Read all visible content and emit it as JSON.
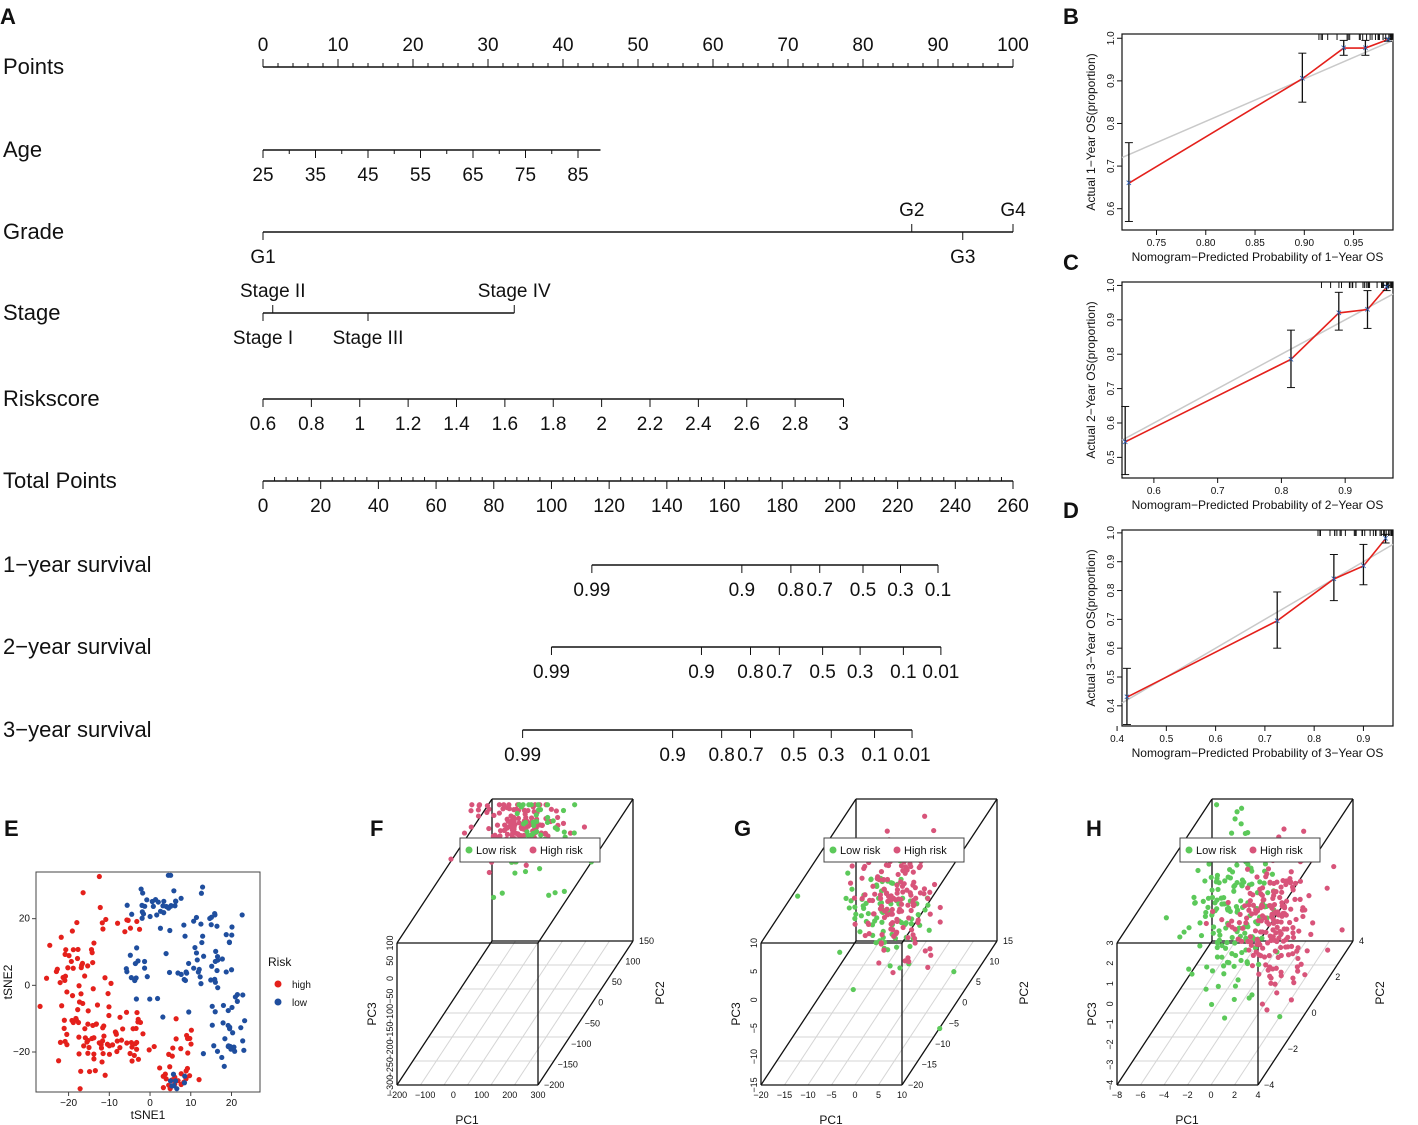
{
  "panel_letters": [
    "A",
    "B",
    "C",
    "D",
    "E",
    "F",
    "G",
    "H"
  ],
  "chart_data": [
    {
      "panel": "A",
      "type": "nomogram",
      "rows": [
        {
          "label": "Points",
          "ticks": [
            {
              "v": 0,
              "t": "0"
            },
            {
              "v": 10,
              "t": "10"
            },
            {
              "v": 20,
              "t": "20"
            },
            {
              "v": 30,
              "t": "30"
            },
            {
              "v": 40,
              "t": "40"
            },
            {
              "v": 50,
              "t": "50"
            },
            {
              "v": 60,
              "t": "60"
            },
            {
              "v": 70,
              "t": "70"
            },
            {
              "v": 80,
              "t": "80"
            },
            {
              "v": 90,
              "t": "90"
            },
            {
              "v": 100,
              "t": "100"
            }
          ],
          "range": [
            0,
            100
          ],
          "labels_above": true
        },
        {
          "label": "Age",
          "ticks": [
            {
              "v": 0,
              "t": "25"
            },
            {
              "v": 7,
              "t": "35"
            },
            {
              "v": 14,
              "t": "45"
            },
            {
              "v": 21,
              "t": "55"
            },
            {
              "v": 28,
              "t": "65"
            },
            {
              "v": 35,
              "t": "75"
            },
            {
              "v": 42,
              "t": "85"
            }
          ],
          "range": [
            0,
            45
          ],
          "labels_above": false
        },
        {
          "label": "Grade",
          "ticks": [
            {
              "v": 0,
              "t": "G1",
              "pos": "below"
            },
            {
              "v": 86.5,
              "t": "G2",
              "pos": "above"
            },
            {
              "v": 93.3,
              "t": "G3",
              "pos": "below"
            },
            {
              "v": 100,
              "t": "G4",
              "pos": "above"
            }
          ],
          "range": [
            0,
            100
          ]
        },
        {
          "label": "Stage",
          "ticks": [
            {
              "v": 0,
              "t": "Stage I",
              "pos": "below"
            },
            {
              "v": 1.3,
              "t": "Stage II",
              "pos": "above"
            },
            {
              "v": 14,
              "t": "Stage III",
              "pos": "below"
            },
            {
              "v": 33.5,
              "t": "Stage IV",
              "pos": "above"
            }
          ],
          "range": [
            0,
            33.5
          ]
        },
        {
          "label": "Riskscore",
          "ticks": [
            {
              "v": 0,
              "t": "0.6"
            },
            {
              "v": 6.45,
              "t": "0.8"
            },
            {
              "v": 12.9,
              "t": "1"
            },
            {
              "v": 19.35,
              "t": "1.2"
            },
            {
              "v": 25.8,
              "t": "1.4"
            },
            {
              "v": 32.25,
              "t": "1.6"
            },
            {
              "v": 38.7,
              "t": "1.8"
            },
            {
              "v": 45.15,
              "t": "2"
            },
            {
              "v": 51.6,
              "t": "2.2"
            },
            {
              "v": 58.05,
              "t": "2.4"
            },
            {
              "v": 64.5,
              "t": "2.6"
            },
            {
              "v": 70.95,
              "t": "2.8"
            },
            {
              "v": 77.4,
              "t": "3"
            }
          ],
          "range": [
            0,
            77.4
          ],
          "labels_above": false
        },
        {
          "label": "Total Points",
          "ticks": [
            {
              "v": 0,
              "t": "0"
            },
            {
              "v": 20,
              "t": "20"
            },
            {
              "v": 40,
              "t": "40"
            },
            {
              "v": 60,
              "t": "60"
            },
            {
              "v": 80,
              "t": "80"
            },
            {
              "v": 100,
              "t": "100"
            },
            {
              "v": 120,
              "t": "120"
            },
            {
              "v": 140,
              "t": "140"
            },
            {
              "v": 160,
              "t": "160"
            },
            {
              "v": 180,
              "t": "180"
            },
            {
              "v": 200,
              "t": "200"
            },
            {
              "v": 220,
              "t": "220"
            },
            {
              "v": 240,
              "t": "240"
            },
            {
              "v": 260,
              "t": "260"
            }
          ],
          "range": [
            0,
            260
          ],
          "scale": "total",
          "labels_above": false
        },
        {
          "label": "1−year survival",
          "ticks": [
            {
              "v": 114,
              "t": "0.99"
            },
            {
              "v": 166,
              "t": "0.9"
            },
            {
              "v": 183,
              "t": "0.8"
            },
            {
              "v": 193,
              "t": "0.7"
            },
            {
              "v": 208,
              "t": "0.5"
            },
            {
              "v": 221,
              "t": "0.3"
            },
            {
              "v": 234,
              "t": "0.1"
            }
          ],
          "range": [
            114,
            234
          ],
          "scale": "total",
          "labels_above": false
        },
        {
          "label": "2−year survival",
          "ticks": [
            {
              "v": 100,
              "t": "0.99"
            },
            {
              "v": 152,
              "t": "0.9"
            },
            {
              "v": 169,
              "t": "0.8"
            },
            {
              "v": 179,
              "t": "0.7"
            },
            {
              "v": 194,
              "t": "0.5"
            },
            {
              "v": 207,
              "t": "0.3"
            },
            {
              "v": 222,
              "t": "0.1"
            },
            {
              "v": 235,
              "t": "0.01"
            }
          ],
          "range": [
            100,
            235
          ],
          "scale": "total",
          "labels_above": false
        },
        {
          "label": "3−year survival",
          "ticks": [
            {
              "v": 90,
              "t": "0.99"
            },
            {
              "v": 142,
              "t": "0.9"
            },
            {
              "v": 159,
              "t": "0.8"
            },
            {
              "v": 169,
              "t": "0.7"
            },
            {
              "v": 184,
              "t": "0.5"
            },
            {
              "v": 197,
              "t": "0.3"
            },
            {
              "v": 212,
              "t": "0.1"
            },
            {
              "v": 225,
              "t": "0.01"
            }
          ],
          "range": [
            90,
            225
          ],
          "scale": "total",
          "labels_above": false
        }
      ]
    },
    {
      "panel": "B",
      "type": "line",
      "subtype": "calibration",
      "xlabel": "Nomogram−Predicted Probability of 1−Year OS",
      "ylabel": "Actual 1−Year OS(proportion)",
      "xlim": [
        0.715,
        0.99
      ],
      "ylim": [
        0.55,
        1.01
      ],
      "xticks": [
        0.75,
        0.8,
        0.85,
        0.9,
        0.95
      ],
      "xtick_labels": [
        "0.75",
        "0.80",
        "0.85",
        "0.90",
        "0.95"
      ],
      "yticks": [
        0.6,
        0.7,
        0.8,
        0.9,
        1.0
      ],
      "ytick_labels": [
        "0.6",
        "0.7",
        "0.8",
        "0.9",
        "1.0"
      ],
      "reference_line": [
        [
          0.715,
          0.72
        ],
        [
          0.99,
          0.995
        ]
      ],
      "series": [
        {
          "name": "calibration",
          "color": "#e4201b",
          "points": [
            {
              "x": 0.722,
              "y": 0.66,
              "lo": 0.57,
              "hi": 0.755
            },
            {
              "x": 0.898,
              "y": 0.905,
              "lo": 0.85,
              "hi": 0.965
            },
            {
              "x": 0.94,
              "y": 0.977,
              "lo": 0.96,
              "hi": 0.995
            },
            {
              "x": 0.962,
              "y": 0.977,
              "lo": 0.96,
              "hi": 0.995
            },
            {
              "x": 0.985,
              "y": 0.997,
              "lo": 0.993,
              "hi": 1.0
            }
          ]
        }
      ]
    },
    {
      "panel": "C",
      "type": "line",
      "subtype": "calibration",
      "xlabel": "Nomogram−Predicted Probability of 2−Year OS",
      "ylabel": "Actual 2−Year OS(proportion)",
      "xlim": [
        0.55,
        0.975
      ],
      "ylim": [
        0.44,
        1.01
      ],
      "xticks": [
        0.6,
        0.7,
        0.8,
        0.9
      ],
      "xtick_labels": [
        "0.6",
        "0.7",
        "0.8",
        "0.9"
      ],
      "yticks": [
        0.5,
        0.6,
        0.7,
        0.8,
        0.9,
        1.0
      ],
      "ytick_labels": [
        "0.5",
        "0.6",
        "0.7",
        "0.8",
        "0.9",
        "1.0"
      ],
      "reference_line": [
        [
          0.55,
          0.55
        ],
        [
          0.975,
          0.975
        ]
      ],
      "series": [
        {
          "name": "calibration",
          "color": "#e4201b",
          "points": [
            {
              "x": 0.555,
              "y": 0.545,
              "lo": 0.45,
              "hi": 0.648
            },
            {
              "x": 0.815,
              "y": 0.785,
              "lo": 0.703,
              "hi": 0.87
            },
            {
              "x": 0.89,
              "y": 0.92,
              "lo": 0.87,
              "hi": 0.98
            },
            {
              "x": 0.935,
              "y": 0.93,
              "lo": 0.875,
              "hi": 0.985
            },
            {
              "x": 0.965,
              "y": 0.995,
              "lo": 0.985,
              "hi": 1.0
            }
          ]
        }
      ]
    },
    {
      "panel": "D",
      "type": "line",
      "subtype": "calibration",
      "xlabel": "Nomogram−Predicted Probability of 3−Year OS",
      "ylabel": "Actual 3−Year OS(proportion)",
      "xlim": [
        0.41,
        0.96
      ],
      "ylim": [
        0.33,
        1.01
      ],
      "xticks": [
        0.4,
        0.5,
        0.6,
        0.7,
        0.8,
        0.9
      ],
      "xtick_labels": [
        "0.4",
        "0.5",
        "0.6",
        "0.7",
        "0.8",
        "0.9"
      ],
      "yticks": [
        0.4,
        0.5,
        0.6,
        0.7,
        0.8,
        0.9,
        1.0
      ],
      "ytick_labels": [
        "0.4",
        "0.5",
        "0.6",
        "0.7",
        "0.8",
        "0.9",
        "1.0"
      ],
      "reference_line": [
        [
          0.41,
          0.41
        ],
        [
          0.96,
          0.96
        ]
      ],
      "series": [
        {
          "name": "calibration",
          "color": "#e4201b",
          "points": [
            {
              "x": 0.42,
              "y": 0.43,
              "lo": 0.335,
              "hi": 0.53
            },
            {
              "x": 0.725,
              "y": 0.695,
              "lo": 0.6,
              "hi": 0.795
            },
            {
              "x": 0.84,
              "y": 0.84,
              "lo": 0.765,
              "hi": 0.925
            },
            {
              "x": 0.9,
              "y": 0.885,
              "lo": 0.82,
              "hi": 0.96
            },
            {
              "x": 0.945,
              "y": 0.98,
              "lo": 0.965,
              "hi": 0.995
            }
          ]
        }
      ]
    },
    {
      "panel": "E",
      "type": "scatter",
      "xlabel": "tSNE1",
      "ylabel": "tSNE2",
      "xlim": [
        -28,
        27
      ],
      "ylim": [
        -32,
        34
      ],
      "xticks": [
        -20,
        -10,
        0,
        10,
        20
      ],
      "xtick_labels": [
        "−20",
        "−10",
        "0",
        "10",
        "20"
      ],
      "yticks": [
        -20,
        0,
        20
      ],
      "ytick_labels": [
        "−20",
        "0",
        "20"
      ],
      "legend": {
        "title": "Risk",
        "entries": [
          {
            "label": "high",
            "color": "#e4201b"
          },
          {
            "label": "low",
            "color": "#1f4e9e"
          }
        ]
      },
      "clusters": [
        {
          "group": "high",
          "n": 40,
          "cx": -18,
          "cy": 8,
          "sx": 4,
          "sy": 10
        },
        {
          "group": "high",
          "n": 55,
          "cx": -15,
          "cy": -15,
          "sx": 5,
          "sy": 7
        },
        {
          "group": "high",
          "n": 30,
          "cx": -5,
          "cy": -16,
          "sx": 4,
          "sy": 5
        },
        {
          "group": "high",
          "n": 18,
          "cx": 8,
          "cy": -20,
          "sx": 3,
          "sy": 4
        },
        {
          "group": "high",
          "n": 14,
          "cx": 6,
          "cy": -28,
          "sx": 2,
          "sy": 2
        },
        {
          "group": "high",
          "n": 10,
          "cx": -7,
          "cy": 18,
          "sx": 3,
          "sy": 2
        },
        {
          "group": "low",
          "n": 40,
          "cx": 3,
          "cy": 25,
          "sx": 6,
          "sy": 4
        },
        {
          "group": "low",
          "n": 25,
          "cx": 16,
          "cy": 15,
          "sx": 3,
          "sy": 6
        },
        {
          "group": "low",
          "n": 30,
          "cx": 10,
          "cy": 3,
          "sx": 5,
          "sy": 5
        },
        {
          "group": "low",
          "n": 28,
          "cx": 19,
          "cy": -13,
          "sx": 3,
          "sy": 5
        },
        {
          "group": "low",
          "n": 10,
          "cx": -4,
          "cy": 3,
          "sx": 2,
          "sy": 4
        },
        {
          "group": "low",
          "n": 8,
          "cx": 7,
          "cy": -29,
          "sx": 2,
          "sy": 1.5
        }
      ]
    },
    {
      "panel": "F",
      "type": "scatter",
      "subtype": "3d",
      "xlabel": "PC1",
      "ylabel": "PC2",
      "zlabel": "PC3",
      "legend": {
        "entries": [
          {
            "label": "Low risk",
            "color": "#5cc95a"
          },
          {
            "label": "High risk",
            "color": "#d8547a"
          }
        ]
      },
      "x_ticks": [
        "−200",
        "−100",
        "0",
        "100",
        "200",
        "300"
      ],
      "y_ticks": [
        "−200",
        "−150",
        "−100",
        "−50",
        "0",
        "50",
        "100",
        "150"
      ],
      "z_ticks": [
        "−300",
        "−250",
        "−200",
        "−150",
        "−100",
        "−50",
        "0",
        "50",
        "100"
      ],
      "clusters": [
        {
          "group": "High risk",
          "n": 150,
          "cx": 0.52,
          "cy": 0.9,
          "sx": 0.09,
          "sy": 0.06
        },
        {
          "group": "Low risk",
          "n": 60,
          "cx": 0.58,
          "cy": 0.86,
          "sx": 0.09,
          "sy": 0.09
        }
      ]
    },
    {
      "panel": "G",
      "type": "scatter",
      "subtype": "3d",
      "xlabel": "PC1",
      "ylabel": "PC2",
      "zlabel": "PC3",
      "legend": {
        "entries": [
          {
            "label": "Low risk",
            "color": "#5cc95a"
          },
          {
            "label": "High risk",
            "color": "#d8547a"
          }
        ]
      },
      "x_ticks": [
        "−20",
        "−15",
        "−10",
        "−5",
        "0",
        "5",
        "10"
      ],
      "y_ticks": [
        "−20",
        "−15",
        "−10",
        "−5",
        "0",
        "5",
        "10",
        "15"
      ],
      "z_ticks": [
        "−15",
        "−10",
        "−5",
        "0",
        "5",
        "10"
      ],
      "clusters": [
        {
          "group": "Low risk",
          "n": 90,
          "cx": 0.55,
          "cy": 0.62,
          "sx": 0.12,
          "sy": 0.12
        },
        {
          "group": "High risk",
          "n": 140,
          "cx": 0.57,
          "cy": 0.63,
          "sx": 0.09,
          "sy": 0.1
        }
      ]
    },
    {
      "panel": "H",
      "type": "scatter",
      "subtype": "3d",
      "xlabel": "PC1",
      "ylabel": "PC2",
      "zlabel": "PC3",
      "legend": {
        "entries": [
          {
            "label": "Low risk",
            "color": "#5cc95a"
          },
          {
            "label": "High risk",
            "color": "#d8547a"
          }
        ]
      },
      "x_ticks": [
        "−8",
        "−6",
        "−4",
        "−2",
        "0",
        "2",
        "4"
      ],
      "y_ticks": [
        "−4",
        "−2",
        "0",
        "2",
        "4"
      ],
      "z_ticks": [
        "−4",
        "−3",
        "−2",
        "−1",
        "0",
        "1",
        "2",
        "3"
      ],
      "clusters": [
        {
          "group": "Low risk",
          "n": 170,
          "cx": 0.5,
          "cy": 0.6,
          "sx": 0.09,
          "sy": 0.15
        },
        {
          "group": "High risk",
          "n": 200,
          "cx": 0.68,
          "cy": 0.58,
          "sx": 0.09,
          "sy": 0.12
        }
      ]
    }
  ]
}
